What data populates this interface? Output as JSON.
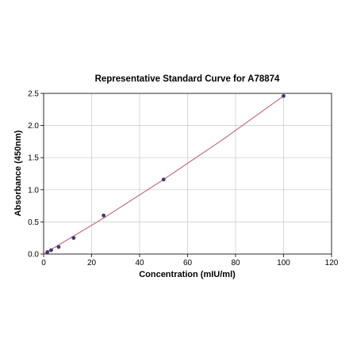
{
  "chart_data": {
    "type": "scatter",
    "title": "Representative Standard Curve for A78874",
    "xlabel": "Concentration (mIU/ml)",
    "ylabel": "Absorbance (450nm)",
    "xlim": [
      0,
      120
    ],
    "ylim": [
      0,
      2.5
    ],
    "x_ticks": [
      0,
      20,
      40,
      60,
      80,
      100,
      120
    ],
    "y_ticks": [
      0.0,
      0.5,
      1.0,
      1.5,
      2.0,
      2.5
    ],
    "x_tick_labels": [
      "0",
      "20",
      "40",
      "60",
      "80",
      "100",
      "120"
    ],
    "y_tick_labels": [
      "0.0",
      "0.5",
      "1.0",
      "1.5",
      "2.0",
      "2.5"
    ],
    "grid": true,
    "series": [
      {
        "points": [
          {
            "x": 1.56,
            "y": 0.03
          },
          {
            "x": 3.13,
            "y": 0.06
          },
          {
            "x": 6.25,
            "y": 0.11
          },
          {
            "x": 12.5,
            "y": 0.25
          },
          {
            "x": 25,
            "y": 0.6
          },
          {
            "x": 50,
            "y": 1.16
          },
          {
            "x": 100,
            "y": 2.46
          }
        ],
        "fit_line": {
          "x": [
            0,
            25,
            50,
            75,
            100
          ],
          "y": [
            0.0,
            0.56,
            1.16,
            1.79,
            2.46
          ]
        }
      }
    ],
    "colors": {
      "points": "#3d3b6e",
      "fit_line": "#c0627a",
      "grid": "#c8c8c8",
      "axis": "#000000"
    }
  }
}
